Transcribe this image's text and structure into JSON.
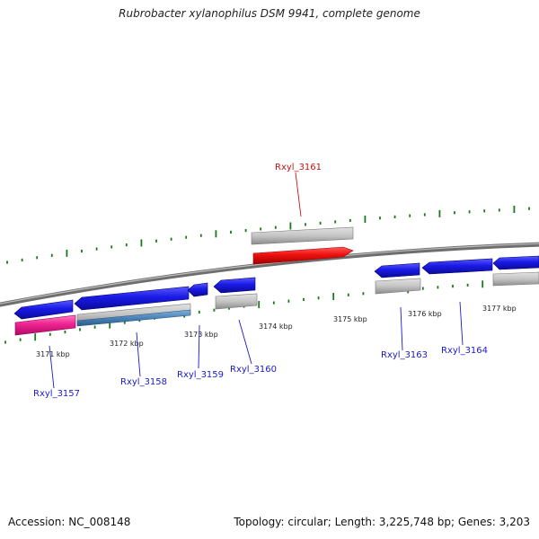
{
  "header": {
    "title": "Rubrobacter xylanophilus DSM 9941, complete genome"
  },
  "footer": {
    "accession": "Accession: NC_008148",
    "topology": "Topology: circular; Length: 3,225,748 bp; Genes: 3,203"
  },
  "colors": {
    "forward_gene": "#1f1fd6",
    "highlighted_gene": "#ee1111",
    "rna_gene": "#e91e8c",
    "pseudo_gene": "#b8b8b8",
    "gene_label": "#1a1acc",
    "highlighted_label": "#cc1111",
    "tick": "#1a7a1a",
    "backbone": "#8a8a8a"
  },
  "ruler": {
    "ticks": [
      {
        "label": "3171 kbp"
      },
      {
        "label": "3172 kbp"
      },
      {
        "label": "3173 kbp"
      },
      {
        "label": "3174 kbp"
      },
      {
        "label": "3175 kbp"
      },
      {
        "label": "3176 kbp"
      },
      {
        "label": "3177 kbp"
      }
    ]
  },
  "genes": [
    {
      "label": "Rxyl_3157",
      "color": "#1a1acc"
    },
    {
      "label": "Rxyl_3158",
      "color": "#1a1acc"
    },
    {
      "label": "Rxyl_3159",
      "color": "#1a1acc"
    },
    {
      "label": "Rxyl_3160",
      "color": "#1a1acc"
    },
    {
      "label": "Rxyl_3161",
      "color": "#cc1111"
    },
    {
      "label": "Rxyl_3163",
      "color": "#1a1acc"
    },
    {
      "label": "Rxyl_3164",
      "color": "#1a1acc"
    }
  ]
}
